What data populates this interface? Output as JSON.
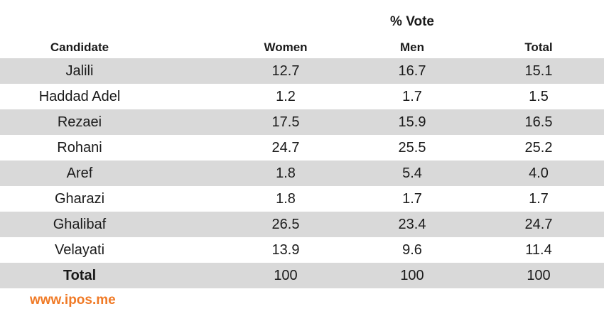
{
  "table": {
    "group_header": "% Vote",
    "headers": [
      "Candidate",
      "Women",
      "Men",
      "Total"
    ],
    "rows": [
      {
        "candidate": "Jalili",
        "women": "12.7",
        "men": "16.7",
        "total": "15.1",
        "shaded": true
      },
      {
        "candidate": "Haddad Adel",
        "women": "1.2",
        "men": "1.7",
        "total": "1.5",
        "shaded": false
      },
      {
        "candidate": "Rezaei",
        "women": "17.5",
        "men": "15.9",
        "total": "16.5",
        "shaded": true
      },
      {
        "candidate": "Rohani",
        "women": "24.7",
        "men": "25.5",
        "total": "25.2",
        "shaded": false
      },
      {
        "candidate": "Aref",
        "women": "1.8",
        "men": "5.4",
        "total": "4.0",
        "shaded": true
      },
      {
        "candidate": "Gharazi",
        "women": "1.8",
        "men": "1.7",
        "total": "1.7",
        "shaded": false
      },
      {
        "candidate": "Ghalibaf",
        "women": "26.5",
        "men": "23.4",
        "total": "24.7",
        "shaded": true
      },
      {
        "candidate": "Velayati",
        "women": "13.9",
        "men": "9.6",
        "total": "11.4",
        "shaded": false
      },
      {
        "candidate": "Total",
        "women": "100",
        "men": "100",
        "total": "100",
        "shaded": true
      }
    ]
  },
  "footer": {
    "source": "www.ipos.me"
  },
  "colors": {
    "row_shade": "#d9d9d9",
    "footer_text": "#f07a26"
  },
  "chart_data": {
    "type": "table",
    "title": "",
    "group_header": "% Vote",
    "columns": [
      "Candidate",
      "Women",
      "Men",
      "Total"
    ],
    "rows": [
      [
        "Jalili",
        12.7,
        16.7,
        15.1
      ],
      [
        "Haddad Adel",
        1.2,
        1.7,
        1.5
      ],
      [
        "Rezaei",
        17.5,
        15.9,
        16.5
      ],
      [
        "Rohani",
        24.7,
        25.5,
        25.2
      ],
      [
        "Aref",
        1.8,
        5.4,
        4.0
      ],
      [
        "Gharazi",
        1.8,
        1.7,
        1.7
      ],
      [
        "Ghalibaf",
        26.5,
        23.4,
        24.7
      ],
      [
        "Velayati",
        13.9,
        9.6,
        11.4
      ],
      [
        "Total",
        100,
        100,
        100
      ]
    ]
  }
}
